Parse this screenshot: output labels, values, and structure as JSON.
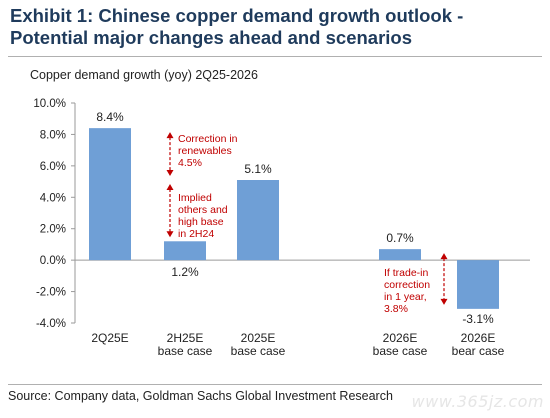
{
  "title": "Exhibit 1: Chinese copper demand growth outlook - Potential major changes ahead and scenarios",
  "source": "Source: Company data, Goldman Sachs Global Investment Research",
  "watermark": "www.365jz.com",
  "colors": {
    "bar": "#6f9fd6",
    "annotation": "#c00000",
    "title": "#1f3b5c"
  },
  "chart_data": {
    "type": "bar",
    "title": "Copper demand growth (yoy) 2Q25-2026",
    "categories": [
      [
        "2Q25E"
      ],
      [
        "2H25E",
        "base case"
      ],
      [
        "2025E",
        "base case"
      ],
      [
        "2026E",
        "base case"
      ],
      [
        "2026E",
        "bear case"
      ]
    ],
    "values": [
      8.4,
      1.2,
      5.1,
      0.7,
      -3.1
    ],
    "data_labels": [
      "8.4%",
      "1.2%",
      "5.1%",
      "0.7%",
      "-3.1%"
    ],
    "ylim": [
      -4,
      10
    ],
    "yticks": [
      10,
      8,
      6,
      4,
      2,
      0,
      -2,
      -4
    ],
    "ytick_labels": [
      "10.0%",
      "8.0%",
      "6.0%",
      "4.0%",
      "2.0%",
      "0.0%",
      "-2.0%",
      "-4.0%"
    ],
    "grid": false,
    "annotations": [
      {
        "lines": [
          "Correction in",
          "renewables",
          "4.5%"
        ],
        "from": 8.4,
        "to": 5.1
      },
      {
        "lines": [
          "Implied",
          "others and",
          "high base",
          "in 2H24"
        ],
        "from": 5.1,
        "to": 1.2
      },
      {
        "lines": [
          "If trade-in",
          "correction",
          "in 1 year,",
          "3.8%"
        ],
        "from": 0.7,
        "to": -3.1
      }
    ]
  }
}
